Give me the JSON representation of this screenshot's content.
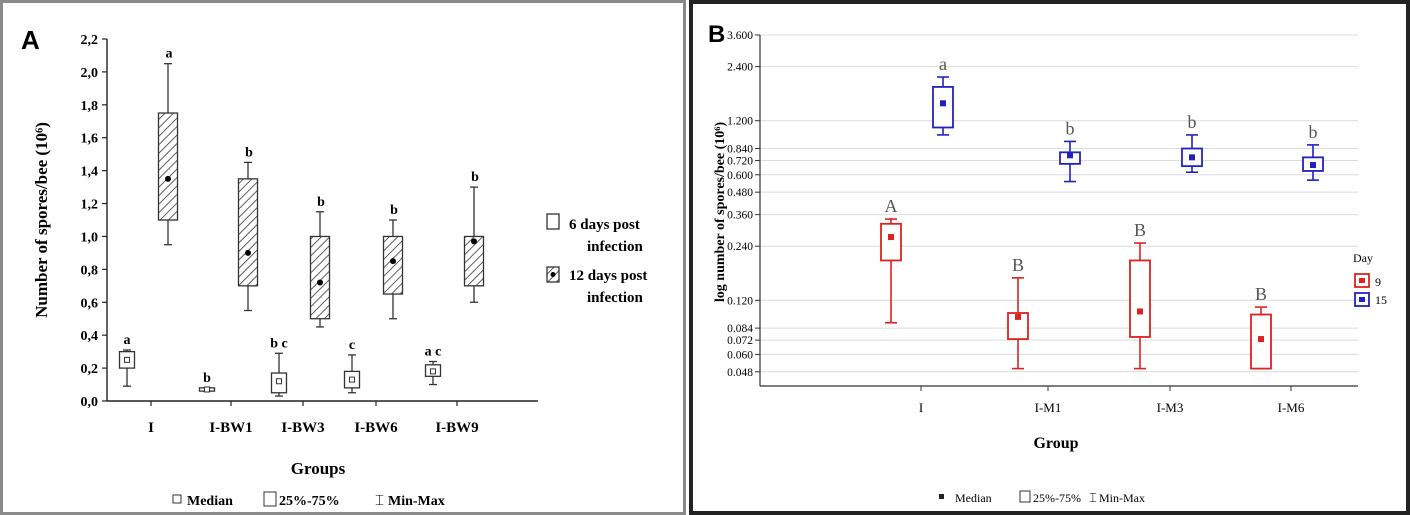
{
  "charts": [
    {
      "panel_label": "A",
      "type": "box",
      "ylabel": "Number of spores/bee (10⁶)",
      "xlabel": "Groups",
      "ylim": [
        0,
        2.2
      ],
      "yticks": [
        "0,0",
        "0,2",
        "0,4",
        "0,6",
        "0,8",
        "1,0",
        "1,2",
        "1,4",
        "1,6",
        "1,8",
        "2,0",
        "2,2"
      ],
      "categories": [
        "I",
        "I-BW1",
        "I-BW3",
        "I-BW6",
        "I-BW9"
      ],
      "legend": [
        "6 days  post infection",
        "12 days post infection"
      ],
      "legend_position": "right",
      "footer_legend": {
        "median": "Median",
        "box": "25%-75%",
        "whisker": "Min-Max"
      },
      "series": [
        {
          "name": "6 days  post infection",
          "boxes": [
            {
              "category": "I",
              "min": 0.09,
              "q1": 0.2,
              "median": 0.25,
              "q3": 0.3,
              "max": 0.31,
              "letter": "a"
            },
            {
              "category": "I-BW1",
              "min": 0.06,
              "q1": 0.06,
              "median": 0.07,
              "q3": 0.08,
              "max": 0.08,
              "letter": "b"
            },
            {
              "category": "I-BW3",
              "min": 0.03,
              "q1": 0.05,
              "median": 0.12,
              "q3": 0.17,
              "max": 0.29,
              "letter": "b c"
            },
            {
              "category": "I-BW6",
              "min": 0.05,
              "q1": 0.08,
              "median": 0.13,
              "q3": 0.18,
              "max": 0.28,
              "letter": "c"
            },
            {
              "category": "I-BW9",
              "min": 0.1,
              "q1": 0.15,
              "median": 0.18,
              "q3": 0.22,
              "max": 0.24,
              "letter": "a c"
            }
          ]
        },
        {
          "name": "12 days post infection",
          "boxes": [
            {
              "category": "I",
              "min": 0.95,
              "q1": 1.1,
              "median": 1.35,
              "q3": 1.75,
              "max": 2.05,
              "letter": "a"
            },
            {
              "category": "I-BW1",
              "min": 0.55,
              "q1": 0.7,
              "median": 0.9,
              "q3": 1.35,
              "max": 1.45,
              "letter": "b"
            },
            {
              "category": "I-BW3",
              "min": 0.45,
              "q1": 0.5,
              "median": 0.72,
              "q3": 1.0,
              "max": 1.15,
              "letter": "b"
            },
            {
              "category": "I-BW6",
              "min": 0.5,
              "q1": 0.65,
              "median": 0.85,
              "q3": 1.0,
              "max": 1.1,
              "letter": "b"
            },
            {
              "category": "I-BW9",
              "min": 0.6,
              "q1": 0.7,
              "median": 0.97,
              "q3": 1.0,
              "max": 1.3,
              "letter": "b"
            }
          ]
        }
      ]
    },
    {
      "panel_label": "B",
      "type": "box",
      "ylabel": "log number of spores/bee (10⁶)",
      "xlabel": "Group",
      "yscale": "log",
      "ylim": [
        0.04,
        3.6
      ],
      "yticks": [
        "0.048",
        "0.060",
        "0.072",
        "0.084",
        "0.120",
        "0.240",
        "0.360",
        "0.480",
        "0.600",
        "0.720",
        "0.840",
        "1.200",
        "2.400",
        "3.600"
      ],
      "categories": [
        "I",
        "I-M1",
        "I-M3",
        "I-M6"
      ],
      "legend_title": "Day",
      "legend": [
        "9",
        "15"
      ],
      "legend_position": "right",
      "footer_legend": {
        "median": "Median",
        "box": "25%-75%",
        "whisker": "Min-Max"
      },
      "colors": {
        "9": "#dd2222",
        "15": "#2222bb"
      },
      "series": [
        {
          "name": "9",
          "boxes": [
            {
              "category": "I",
              "min": 0.09,
              "q1": 0.2,
              "median": 0.27,
              "q3": 0.32,
              "max": 0.34,
              "letter": "A"
            },
            {
              "category": "I-M1",
              "min": 0.05,
              "q1": 0.073,
              "median": 0.097,
              "q3": 0.102,
              "max": 0.16,
              "letter": "B"
            },
            {
              "category": "I-M3",
              "min": 0.05,
              "q1": 0.075,
              "median": 0.104,
              "q3": 0.2,
              "max": 0.25,
              "letter": "B"
            },
            {
              "category": "I-M6",
              "min": 0.05,
              "q1": 0.05,
              "median": 0.073,
              "q3": 0.1,
              "max": 0.11,
              "letter": "B"
            }
          ]
        },
        {
          "name": "15",
          "boxes": [
            {
              "category": "I",
              "min": 1.0,
              "q1": 1.1,
              "median": 1.5,
              "q3": 1.85,
              "max": 2.1,
              "letter": "a"
            },
            {
              "category": "I-M1",
              "min": 0.55,
              "q1": 0.69,
              "median": 0.77,
              "q3": 0.8,
              "max": 0.92,
              "letter": "b"
            },
            {
              "category": "I-M3",
              "min": 0.62,
              "q1": 0.67,
              "median": 0.75,
              "q3": 0.84,
              "max": 1.0,
              "letter": "b"
            },
            {
              "category": "I-M6",
              "min": 0.56,
              "q1": 0.63,
              "median": 0.68,
              "q3": 0.75,
              "max": 0.88,
              "letter": "b"
            }
          ]
        }
      ]
    }
  ]
}
